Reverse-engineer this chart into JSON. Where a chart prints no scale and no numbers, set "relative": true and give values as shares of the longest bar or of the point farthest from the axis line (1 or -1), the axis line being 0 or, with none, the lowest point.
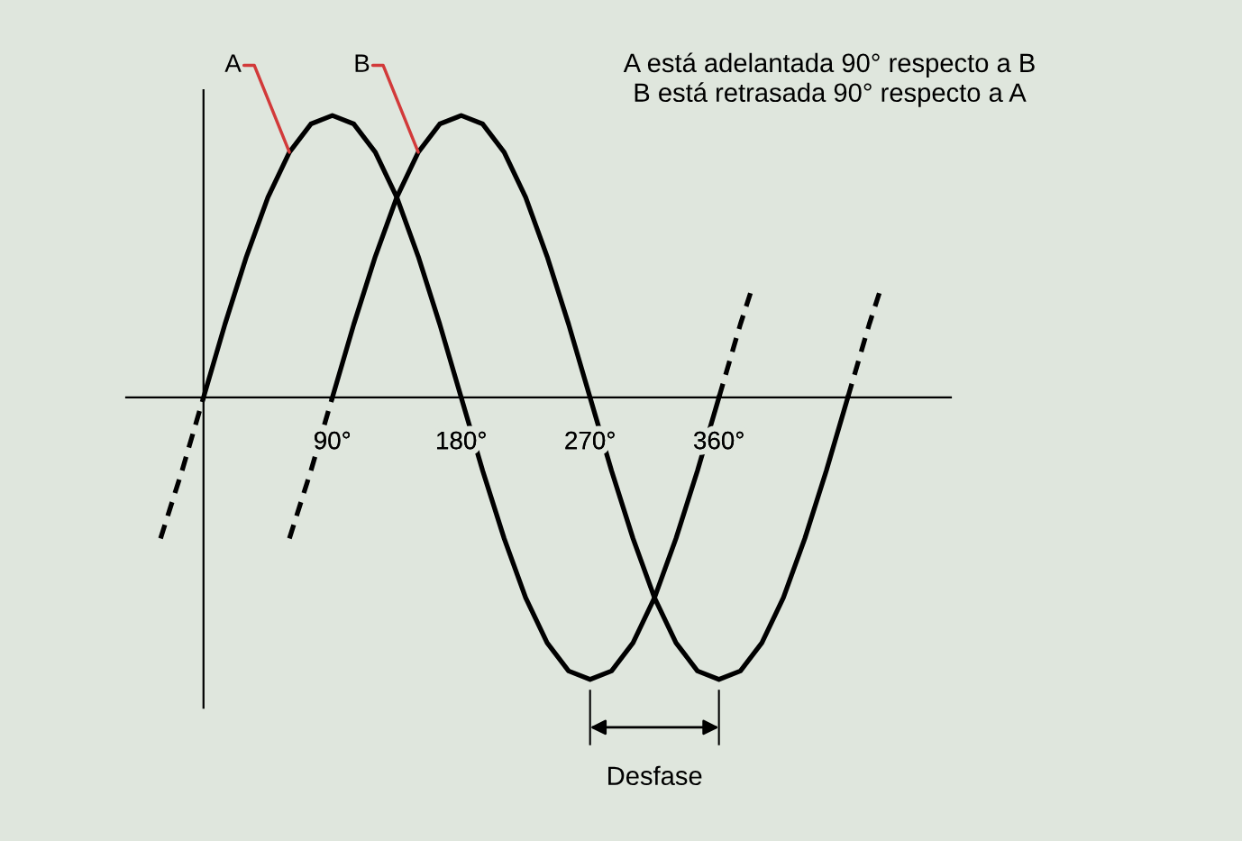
{
  "chart_data": {
    "type": "line",
    "relative": true,
    "xlim": [
      -54,
      522
    ],
    "xticks": [
      {
        "value": 90,
        "label": "90°"
      },
      {
        "value": 180,
        "label": "180°"
      },
      {
        "value": 270,
        "label": "270°"
      },
      {
        "value": 360,
        "label": "360°"
      }
    ],
    "grid": false,
    "legend": false,
    "marker": "none",
    "series": [
      {
        "name": "A",
        "color": "#000000",
        "line_style": "solid",
        "x": [
          0,
          15,
          30,
          45,
          60,
          75,
          90,
          105,
          120,
          135,
          150,
          165,
          180,
          195,
          210,
          225,
          240,
          255,
          270,
          285,
          300,
          315,
          330,
          345,
          360
        ],
        "values": [
          0,
          0.26,
          0.5,
          0.71,
          0.87,
          0.97,
          1,
          0.97,
          0.87,
          0.71,
          0.5,
          0.26,
          0,
          -0.26,
          -0.5,
          -0.71,
          -0.87,
          -0.97,
          -1,
          -0.97,
          -0.87,
          -0.71,
          -0.5,
          -0.26,
          0
        ]
      },
      {
        "color": "#000000",
        "line_style": "dashed",
        "x": [
          -30,
          -15,
          0
        ],
        "values": [
          -0.5,
          -0.26,
          0
        ]
      },
      {
        "color": "#000000",
        "line_style": "dashed",
        "x": [
          360,
          375,
          382
        ],
        "values": [
          0,
          0.26,
          0.37
        ]
      },
      {
        "name": "B",
        "color": "#000000",
        "line_style": "solid",
        "x": [
          90,
          105,
          120,
          135,
          150,
          165,
          180,
          195,
          210,
          225,
          240,
          255,
          270,
          285,
          300,
          315,
          330,
          345,
          360,
          375,
          390,
          405,
          420,
          435,
          450
        ],
        "values": [
          0,
          0.26,
          0.5,
          0.71,
          0.87,
          0.97,
          1,
          0.97,
          0.87,
          0.71,
          0.5,
          0.26,
          0,
          -0.26,
          -0.5,
          -0.71,
          -0.87,
          -0.97,
          -1,
          -0.97,
          -0.87,
          -0.71,
          -0.5,
          -0.26,
          0
        ]
      },
      {
        "color": "#000000",
        "line_style": "dashed",
        "x": [
          60,
          75,
          90
        ],
        "values": [
          -0.5,
          -0.26,
          0
        ]
      },
      {
        "color": "#000000",
        "line_style": "dashed",
        "x": [
          450,
          465,
          472
        ],
        "values": [
          0,
          0.26,
          0.37
        ]
      }
    ],
    "annotations": [
      "A está adelantada 90° respecto a B\nB está retrasada 90° respecto a A",
      "Desfase"
    ]
  }
}
